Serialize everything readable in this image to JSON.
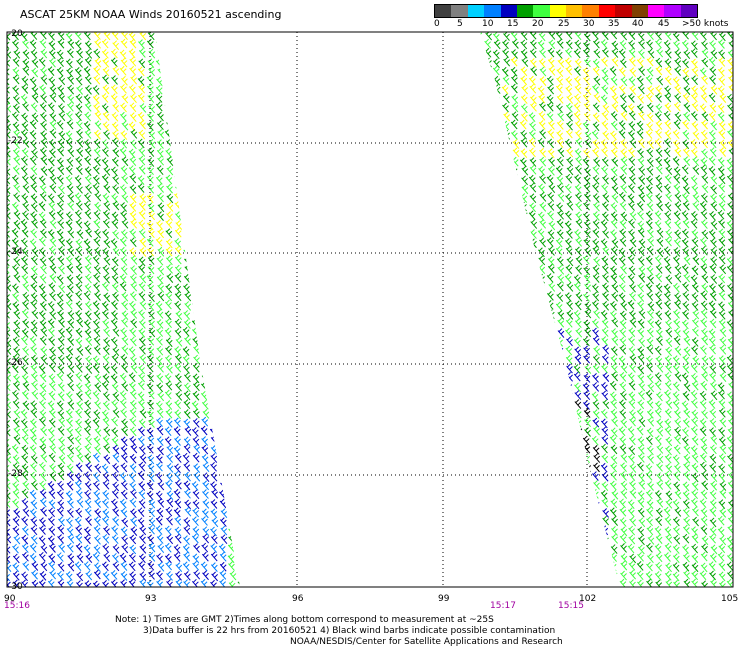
{
  "title": "ASCAT 25KM NOAA Winds 20160521 ascending",
  "legend": {
    "colors": [
      "#404040",
      "#808080",
      "#00d0ff",
      "#0080ff",
      "#0000c0",
      "#00a000",
      "#40ff40",
      "#ffff00",
      "#ffc000",
      "#ff8000",
      "#ff0000",
      "#c00000",
      "#804000",
      "#ff00ff",
      "#b000ff",
      "#6000c0"
    ],
    "labels": [
      "0",
      "5",
      "10",
      "15",
      "20",
      "25",
      "30",
      "35",
      "40",
      "45",
      ">50 knots"
    ]
  },
  "map": {
    "lat_labels": [
      "-20",
      "-22",
      "-24",
      "-26",
      "-28",
      "-30"
    ],
    "lon_labels": [
      "90",
      "93",
      "96",
      "99",
      "102",
      "105"
    ],
    "times": [
      "15:16",
      "15:17",
      "15:15"
    ],
    "time_color": "#a000a0"
  },
  "notes": {
    "line1": "Note: 1) Times are GMT 2)Times along bottom correspond to measurement at ~25S",
    "line2": "3)Data buffer is 22 hrs from 20160521 4) Black wind barbs indicate possible contamination",
    "line3": "NOAA/NESDIS/Center for Satellite Applications and Research"
  }
}
